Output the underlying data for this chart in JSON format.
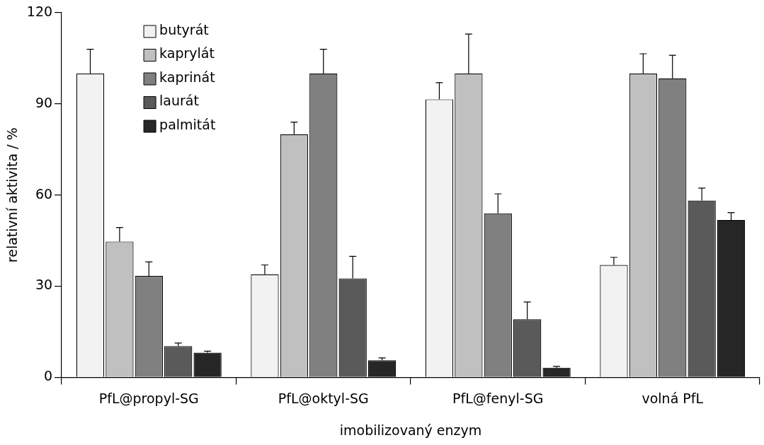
{
  "chart_data": {
    "type": "bar",
    "xlabel": "imobilizovaný enzym",
    "ylabel": "relativní aktivita / %",
    "categories": [
      "PfL@propyl-SG",
      "PfL@oktyl-SG",
      "PfL@fenyl-SG",
      "volná PfL"
    ],
    "series": [
      {
        "name": "butyrát",
        "color": "#f2f2f2",
        "values": [
          100,
          33.9,
          91.5,
          37
        ],
        "errors": [
          [
            100,
            108
          ],
          [
            33.9,
            37
          ],
          [
            91.5,
            97
          ],
          [
            37,
            39.5
          ]
        ]
      },
      {
        "name": "kaprylát",
        "color": "#c0c0c0",
        "values": [
          44.7,
          80,
          100,
          100
        ],
        "errors": [
          [
            44.7,
            49.3
          ],
          [
            80,
            84
          ],
          [
            100,
            113
          ],
          [
            100,
            106.5
          ]
        ]
      },
      {
        "name": "kaprinát",
        "color": "#808080",
        "values": [
          33.4,
          100,
          54,
          98.4
        ],
        "errors": [
          [
            33.4,
            38
          ],
          [
            100,
            108
          ],
          [
            54,
            60.4
          ],
          [
            98.4,
            106
          ]
        ]
      },
      {
        "name": "laurát",
        "color": "#5a5a5a",
        "values": [
          10.3,
          32.6,
          19.1,
          58.2
        ],
        "errors": [
          [
            10.3,
            11.3
          ],
          [
            32.6,
            39.8
          ],
          [
            19.1,
            24.8
          ],
          [
            58.2,
            62.3
          ]
        ]
      },
      {
        "name": "palmitát",
        "color": "#262626",
        "values": [
          8.1,
          5.6,
          3.2,
          51.8
        ],
        "errors": [
          [
            8.1,
            8.6
          ],
          [
            5.6,
            6.4
          ],
          [
            3.2,
            3.6
          ],
          [
            51.8,
            54.2
          ]
        ]
      }
    ],
    "ylim": [
      0,
      120
    ],
    "yticks": [
      0,
      30,
      60,
      90,
      120
    ],
    "grid": false,
    "legend": "top left"
  }
}
